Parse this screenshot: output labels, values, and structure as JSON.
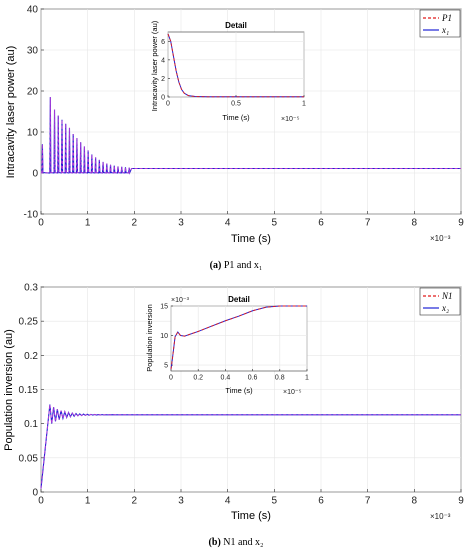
{
  "captions": [
    {
      "label": "(a)",
      "text": " P1 and x₁"
    },
    {
      "label": "(b)",
      "text": " N1 and x₂"
    }
  ],
  "colors": {
    "red_series": "#e01b1b",
    "blue_series": "#1f23d6",
    "purple_overlap": "#b23ad6",
    "grid": "#e6e6e6"
  },
  "chart_data": [
    {
      "type": "line",
      "ylabel": "Intracavity laser power  (au)",
      "xlabel": "Time  (s)",
      "x_exponent": "×10⁻³",
      "xlim": [
        0,
        9
      ],
      "ylim": [
        -10,
        40
      ],
      "x_ticks": [
        "0",
        "1",
        "2",
        "3",
        "4",
        "5",
        "6",
        "7",
        "8",
        "9"
      ],
      "y_ticks": [
        "-10",
        "0",
        "10",
        "20",
        "30",
        "40"
      ],
      "grid": true,
      "legend": {
        "position": "top-right",
        "entries": [
          "P1",
          "x₁"
        ]
      },
      "series": [
        {
          "name": "P1",
          "style": "dashed",
          "kind": "relaxation_spikes",
          "steady": 1.1,
          "spikes": [
            {
              "t": 0.03,
              "v": 7
            },
            {
              "t": 0.2,
              "v": 18.5
            },
            {
              "t": 0.29,
              "v": 15.5
            },
            {
              "t": 0.37,
              "v": 14
            },
            {
              "t": 0.45,
              "v": 13
            },
            {
              "t": 0.53,
              "v": 12
            },
            {
              "t": 0.61,
              "v": 11
            },
            {
              "t": 0.69,
              "v": 9.5
            },
            {
              "t": 0.77,
              "v": 8.5
            },
            {
              "t": 0.85,
              "v": 7.5
            },
            {
              "t": 0.93,
              "v": 6.5
            },
            {
              "t": 1.01,
              "v": 5.5
            },
            {
              "t": 1.09,
              "v": 4.5
            },
            {
              "t": 1.17,
              "v": 3.8
            },
            {
              "t": 1.25,
              "v": 3.2
            },
            {
              "t": 1.33,
              "v": 2.7
            },
            {
              "t": 1.41,
              "v": 2.3
            },
            {
              "t": 1.49,
              "v": 2.0
            },
            {
              "t": 1.57,
              "v": 1.8
            },
            {
              "t": 1.65,
              "v": 1.6
            },
            {
              "t": 1.73,
              "v": 1.5
            },
            {
              "t": 1.81,
              "v": 1.4
            },
            {
              "t": 1.89,
              "v": 1.3
            }
          ]
        },
        {
          "name": "x₁",
          "style": "solid",
          "kind": "relaxation_spikes",
          "same_as": "P1"
        }
      ],
      "inset": {
        "title": "Detail",
        "xlabel": "Time  (s)",
        "ylabel": "Intracavity laser power  (au)",
        "x_exponent": "×10⁻⁵",
        "xlim": [
          0,
          1
        ],
        "ylim": [
          0,
          7
        ],
        "x_ticks": [
          "0",
          "0.5",
          "1"
        ],
        "y_ticks": [
          "0",
          "2",
          "4",
          "6"
        ],
        "x": [
          0,
          0.02,
          0.04,
          0.06,
          0.08,
          0.1,
          0.12,
          0.15,
          0.2,
          0.3,
          1.0
        ],
        "y": [
          6.8,
          6.0,
          4.4,
          2.8,
          1.6,
          0.8,
          0.4,
          0.15,
          0.05,
          0.02,
          0.02
        ]
      }
    },
    {
      "type": "line",
      "ylabel": "Population inversion  (au)",
      "xlabel": "Time  (s)",
      "x_exponent": "×10⁻³",
      "xlim": [
        0,
        9
      ],
      "ylim": [
        0,
        0.3
      ],
      "x_ticks": [
        "0",
        "1",
        "2",
        "3",
        "4",
        "5",
        "6",
        "7",
        "8",
        "9"
      ],
      "y_ticks": [
        "0",
        "0.05",
        "0.1",
        "0.15",
        "0.2",
        "0.25",
        "0.3"
      ],
      "grid": true,
      "legend": {
        "position": "top-right",
        "entries": [
          "N1",
          "x₂"
        ]
      },
      "series": [
        {
          "name": "N1",
          "style": "dashed",
          "kind": "damped_oscillation",
          "start": 0.005,
          "rise_end": 0.19,
          "peak": 0.128,
          "steady": 0.113,
          "period": 0.08,
          "decay_until": 2.0
        },
        {
          "name": "x₂",
          "style": "solid",
          "kind": "damped_oscillation",
          "same_as": "N1"
        }
      ],
      "inset": {
        "title": "Detail",
        "xlabel": "Time  (s)",
        "ylabel": "Population inversion",
        "x_exponent": "×10⁻⁵",
        "y_exponent": "×10⁻³",
        "xlim": [
          0,
          1
        ],
        "ylim": [
          4,
          15
        ],
        "x_ticks": [
          "0",
          "0.2",
          "0.4",
          "0.6",
          "0.8",
          "1"
        ],
        "y_ticks": [
          "5",
          "10",
          "15"
        ],
        "x": [
          0,
          0.01,
          0.03,
          0.05,
          0.07,
          0.1,
          0.2,
          0.3,
          0.4,
          0.5,
          0.6,
          0.7,
          0.8,
          0.9,
          1.0
        ],
        "y": [
          4.3,
          6.0,
          9.8,
          10.6,
          10.0,
          9.9,
          10.7,
          11.6,
          12.5,
          13.3,
          14.2,
          14.8,
          15.0,
          15.0,
          15.0
        ]
      }
    }
  ]
}
